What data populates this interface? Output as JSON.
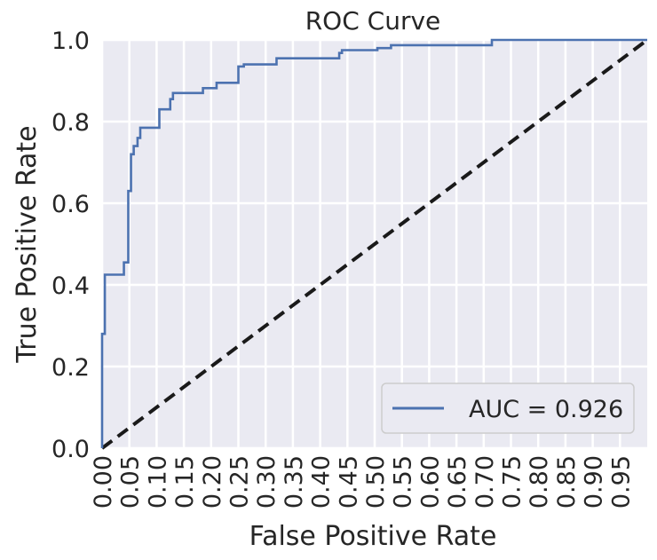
{
  "chart_data": {
    "type": "line",
    "title": "ROC Curve",
    "xlabel": "False Positive Rate",
    "ylabel": "True Positive Rate",
    "xlim": [
      0,
      1
    ],
    "ylim": [
      0,
      1
    ],
    "grid": true,
    "legend_position": "lower-right",
    "x_tick_labels": [
      "0.00",
      "0.05",
      "0.10",
      "0.15",
      "0.20",
      "0.25",
      "0.30",
      "0.35",
      "0.40",
      "0.45",
      "0.50",
      "0.55",
      "0.60",
      "0.65",
      "0.70",
      "0.75",
      "0.80",
      "0.85",
      "0.90",
      "0.95"
    ],
    "y_tick_labels": [
      "0.0",
      "0.2",
      "0.4",
      "0.6",
      "0.8",
      "1.0"
    ],
    "series": [
      {
        "name": "AUC = 0.926",
        "style": "solid",
        "color": "#4c72b0",
        "x": [
          0.0,
          0.0,
          0.005,
          0.005,
          0.008,
          0.008,
          0.04,
          0.04,
          0.048,
          0.048,
          0.053,
          0.053,
          0.058,
          0.058,
          0.065,
          0.065,
          0.07,
          0.07,
          0.105,
          0.105,
          0.125,
          0.125,
          0.13,
          0.13,
          0.185,
          0.185,
          0.21,
          0.21,
          0.25,
          0.25,
          0.26,
          0.26,
          0.32,
          0.32,
          0.435,
          0.435,
          0.44,
          0.44,
          0.505,
          0.505,
          0.53,
          0.53,
          0.715,
          0.715,
          1.0
        ],
        "y": [
          0.0,
          0.28,
          0.28,
          0.425,
          0.425,
          0.425,
          0.425,
          0.455,
          0.455,
          0.63,
          0.63,
          0.72,
          0.72,
          0.74,
          0.74,
          0.76,
          0.76,
          0.785,
          0.785,
          0.83,
          0.83,
          0.855,
          0.855,
          0.87,
          0.87,
          0.882,
          0.882,
          0.895,
          0.895,
          0.935,
          0.935,
          0.94,
          0.94,
          0.955,
          0.955,
          0.968,
          0.968,
          0.975,
          0.975,
          0.98,
          0.98,
          0.987,
          0.987,
          1.0,
          1.0
        ]
      },
      {
        "name": "",
        "style": "dashed",
        "color": "#1a1a1a",
        "x": [
          0,
          1
        ],
        "y": [
          0,
          1
        ]
      }
    ]
  }
}
